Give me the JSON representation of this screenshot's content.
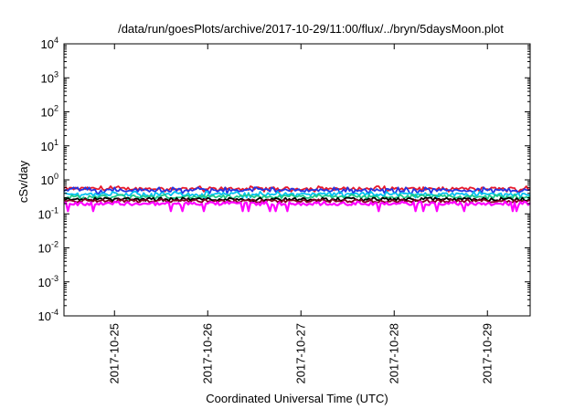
{
  "chart_data": {
    "type": "line",
    "title": "/data/run/goesPlots/archive/2017-10-29/11:00/flux/../bryn/5daysMoon.plot",
    "xlabel": "Coordinated Universal Time (UTC)",
    "ylabel": "cSv/day",
    "y_scale": "log",
    "ylim": [
      0.0001,
      10000
    ],
    "y_ticks": [
      {
        "base": "10",
        "exp": "4"
      },
      {
        "base": "10",
        "exp": "3"
      },
      {
        "base": "10",
        "exp": "2"
      },
      {
        "base": "10",
        "exp": "1"
      },
      {
        "base": "10",
        "exp": "0"
      },
      {
        "base": "10",
        "exp": "-1"
      },
      {
        "base": "10",
        "exp": "-2"
      },
      {
        "base": "10",
        "exp": "-3"
      },
      {
        "base": "10",
        "exp": "-4"
      }
    ],
    "xlim": [
      "2017-10-24 11:00",
      "2017-10-29 11:00"
    ],
    "x_ticks": [
      "2017-10-25",
      "2017-10-26",
      "2017-10-27",
      "2017-10-28",
      "2017-10-29"
    ],
    "grid": false,
    "series": [
      {
        "color": "#e8182a",
        "approx_mean": 0.55,
        "range": [
          0.45,
          0.65
        ]
      },
      {
        "color": "#2433e0",
        "approx_mean": 0.5,
        "range": [
          0.4,
          0.6
        ]
      },
      {
        "color": "#00c0f0",
        "approx_mean": 0.38,
        "range": [
          0.3,
          0.45
        ]
      },
      {
        "color": "#1fc98a",
        "approx_mean": 0.32,
        "range": [
          0.27,
          0.37
        ]
      },
      {
        "color": "#000000",
        "approx_mean": 0.27,
        "range": [
          0.24,
          0.3
        ]
      },
      {
        "color": "#800020",
        "approx_mean": 0.24,
        "range": [
          0.22,
          0.27
        ]
      },
      {
        "color": "#ff00ff",
        "approx_mean": 0.2,
        "range": [
          0.12,
          0.23
        ]
      }
    ]
  }
}
